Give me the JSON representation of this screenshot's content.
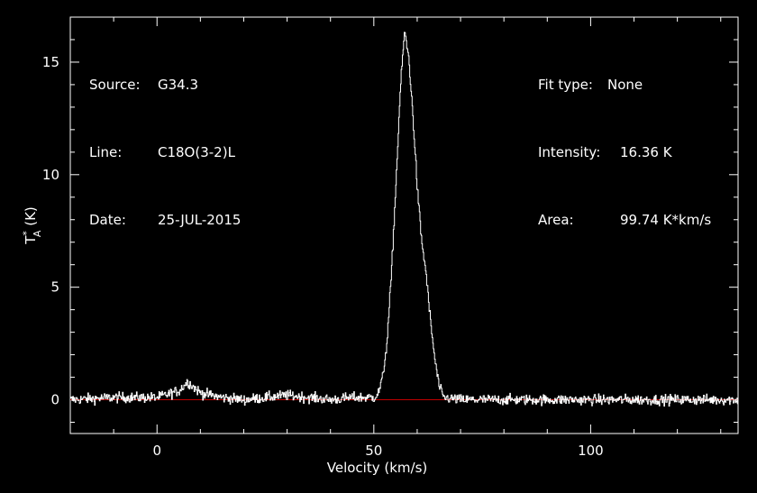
{
  "header": {
    "left": [
      {
        "label": "Source:",
        "value": "G34.3"
      },
      {
        "label": "Line:",
        "value": "C18O(3-2)L"
      },
      {
        "label": "Date:",
        "value": "25-JUL-2015"
      }
    ],
    "right": [
      {
        "label": "Fit type:",
        "value": "None"
      },
      {
        "label": "Intensity:",
        "value": "16.36 K"
      },
      {
        "label": "Area:",
        "value": "99.74 K*km/s"
      }
    ]
  },
  "chart_data": {
    "type": "line",
    "xlabel": "Velocity (km/s)",
    "ylabel": "T*A (K)",
    "xlim": [
      -20,
      134
    ],
    "ylim": [
      -1.5,
      17
    ],
    "xticks": [
      0,
      50,
      100
    ],
    "yticks": [
      0,
      5,
      10,
      15
    ],
    "baseline": 0,
    "series": [
      {
        "x": [
          -20,
          -10,
          0,
          5,
          7,
          10,
          15,
          20,
          30,
          40,
          45,
          50,
          51,
          52,
          53,
          54,
          55,
          56,
          57,
          58,
          59,
          60,
          61,
          62,
          63,
          64,
          65,
          66,
          70,
          80,
          90,
          100,
          110,
          120,
          134
        ],
        "y": [
          0.0,
          0.1,
          0.1,
          0.4,
          0.8,
          0.3,
          0.1,
          0.0,
          0.2,
          0.0,
          0.1,
          0.1,
          0.3,
          1.0,
          2.6,
          5.6,
          9.4,
          13.6,
          16.36,
          15.2,
          12.5,
          9.3,
          7.0,
          5.6,
          3.5,
          1.8,
          0.6,
          0.1,
          0.0,
          0.0,
          0.0,
          0.0,
          0.0,
          0.0,
          0.0
        ]
      }
    ],
    "colors": {
      "background": "#000000",
      "axes": "#ffffff",
      "line": "#ffffff",
      "baseline": "#c00000"
    }
  }
}
